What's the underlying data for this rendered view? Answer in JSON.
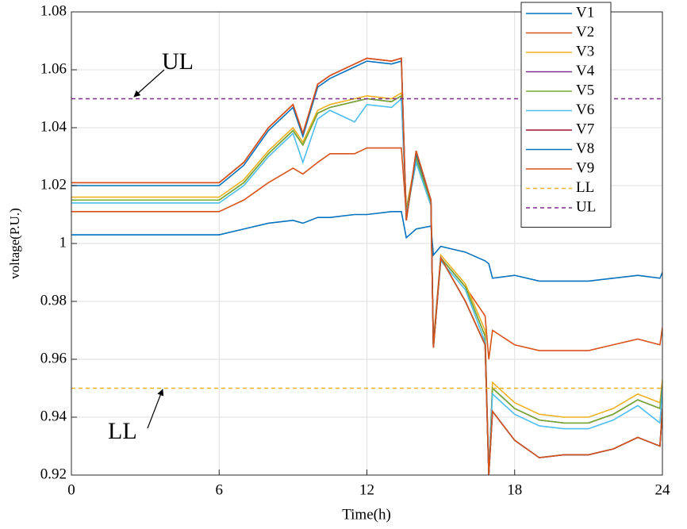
{
  "chart_data": {
    "type": "line",
    "xlabel": "Time(h)",
    "ylabel": "voltage(P.U.)",
    "xlim": [
      0,
      24
    ],
    "xticks": [
      0,
      6,
      12,
      18,
      24
    ],
    "ylim": [
      0.92,
      1.08
    ],
    "yticks": [
      0.92,
      0.94,
      0.96,
      0.98,
      1,
      1.02,
      1.04,
      1.06,
      1.08
    ],
    "grid": true,
    "legend": "upper right",
    "annotations": [
      "UL",
      "LL"
    ],
    "x": [
      0,
      6,
      7,
      8,
      9,
      9.4,
      10,
      10.5,
      11.5,
      12,
      13,
      13.4,
      13.6,
      14,
      14.6,
      14.7,
      15,
      16,
      16.8,
      16.95,
      17.1,
      18,
      19,
      20,
      21,
      22,
      23,
      23.9,
      24
    ],
    "series": [
      {
        "name": "V1",
        "color": "#0072BD",
        "values": [
          1.003,
          1.003,
          1.005,
          1.007,
          1.008,
          1.007,
          1.009,
          1.009,
          1.01,
          1.01,
          1.011,
          1.011,
          1.002,
          1.005,
          1.006,
          0.996,
          0.999,
          0.997,
          0.994,
          0.993,
          0.988,
          0.989,
          0.987,
          0.987,
          0.987,
          0.988,
          0.989,
          0.988,
          0.99
        ]
      },
      {
        "name": "V2",
        "color": "#D95319",
        "values": [
          1.011,
          1.011,
          1.015,
          1.021,
          1.026,
          1.024,
          1.028,
          1.031,
          1.031,
          1.033,
          1.033,
          1.033,
          1.01,
          1.028,
          1.015,
          0.964,
          0.995,
          0.985,
          0.975,
          0.96,
          0.97,
          0.965,
          0.963,
          0.963,
          0.963,
          0.965,
          0.967,
          0.965,
          0.971
        ]
      },
      {
        "name": "V3",
        "color": "#EDB120",
        "values": [
          1.016,
          1.016,
          1.022,
          1.032,
          1.04,
          1.035,
          1.046,
          1.048,
          1.05,
          1.051,
          1.05,
          1.052,
          1.012,
          1.03,
          1.015,
          0.966,
          0.996,
          0.986,
          0.97,
          0.92,
          0.952,
          0.945,
          0.941,
          0.94,
          0.94,
          0.943,
          0.948,
          0.945,
          0.953
        ]
      },
      {
        "name": "V4",
        "color": "#7E2F8E",
        "values": [
          1.015,
          1.015,
          1.021,
          1.031,
          1.039,
          1.034,
          1.045,
          1.047,
          1.049,
          1.05,
          1.049,
          1.051,
          1.011,
          1.029,
          1.014,
          0.965,
          0.995,
          0.985,
          0.968,
          0.92,
          0.95,
          0.943,
          0.939,
          0.938,
          0.938,
          0.941,
          0.946,
          0.943,
          0.951
        ]
      },
      {
        "name": "V5",
        "color": "#77AC30",
        "values": [
          1.015,
          1.015,
          1.021,
          1.031,
          1.039,
          1.034,
          1.045,
          1.047,
          1.049,
          1.05,
          1.049,
          1.051,
          1.011,
          1.029,
          1.014,
          0.965,
          0.995,
          0.985,
          0.968,
          0.92,
          0.95,
          0.943,
          0.939,
          0.938,
          0.938,
          0.941,
          0.946,
          0.943,
          0.951
        ]
      },
      {
        "name": "V6",
        "color": "#4DBEEE",
        "values": [
          1.014,
          1.014,
          1.02,
          1.03,
          1.038,
          1.028,
          1.043,
          1.046,
          1.042,
          1.048,
          1.047,
          1.05,
          1.01,
          1.028,
          1.013,
          0.964,
          0.994,
          0.984,
          0.966,
          0.92,
          0.948,
          0.941,
          0.937,
          0.936,
          0.936,
          0.939,
          0.944,
          0.938,
          0.95
        ]
      },
      {
        "name": "V7",
        "color": "#A2142F",
        "values": [
          1.021,
          1.021,
          1.028,
          1.04,
          1.048,
          1.038,
          1.055,
          1.058,
          1.062,
          1.064,
          1.063,
          1.064,
          1.008,
          1.032,
          1.015,
          0.964,
          0.995,
          0.98,
          0.965,
          0.92,
          0.942,
          0.932,
          0.926,
          0.927,
          0.927,
          0.929,
          0.933,
          0.93,
          0.943
        ]
      },
      {
        "name": "V8",
        "color": "#0072BD",
        "values": [
          1.02,
          1.02,
          1.027,
          1.039,
          1.047,
          1.037,
          1.054,
          1.057,
          1.061,
          1.063,
          1.062,
          1.063,
          1.008,
          1.031,
          1.015,
          0.964,
          0.995,
          0.98,
          0.965,
          0.92,
          0.942,
          0.932,
          0.926,
          0.927,
          0.927,
          0.929,
          0.933,
          0.93,
          0.943
        ]
      },
      {
        "name": "V9",
        "color": "#D95319",
        "values": [
          1.021,
          1.021,
          1.028,
          1.04,
          1.048,
          1.038,
          1.055,
          1.058,
          1.062,
          1.064,
          1.063,
          1.064,
          1.008,
          1.032,
          1.015,
          0.964,
          0.995,
          0.98,
          0.965,
          0.92,
          0.942,
          0.932,
          0.926,
          0.927,
          0.927,
          0.929,
          0.933,
          0.93,
          0.943
        ]
      },
      {
        "name": "LL",
        "color": "#EDB120",
        "dashed": true,
        "values": [
          0.95,
          0.95,
          0.95,
          0.95,
          0.95,
          0.95,
          0.95,
          0.95,
          0.95,
          0.95,
          0.95,
          0.95,
          0.95,
          0.95,
          0.95,
          0.95,
          0.95,
          0.95,
          0.95,
          0.95,
          0.95,
          0.95,
          0.95,
          0.95,
          0.95,
          0.95,
          0.95,
          0.95,
          0.95
        ]
      },
      {
        "name": "UL",
        "color": "#7E2F8E",
        "dashed": true,
        "values": [
          1.05,
          1.05,
          1.05,
          1.05,
          1.05,
          1.05,
          1.05,
          1.05,
          1.05,
          1.05,
          1.05,
          1.05,
          1.05,
          1.05,
          1.05,
          1.05,
          1.05,
          1.05,
          1.05,
          1.05,
          1.05,
          1.05,
          1.05,
          1.05,
          1.05,
          1.05,
          1.05,
          1.05,
          1.05
        ]
      }
    ]
  }
}
